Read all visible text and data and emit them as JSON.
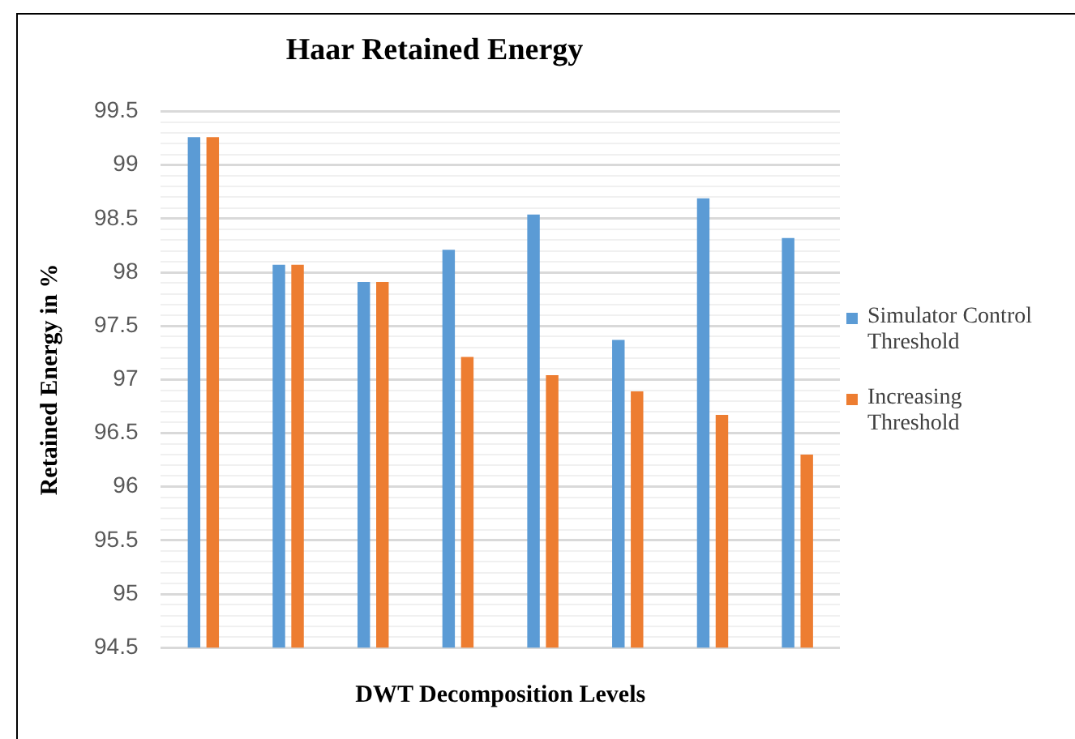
{
  "chart_data": {
    "type": "bar",
    "title": "Haar Retained Energy",
    "xlabel": "DWT Decomposition Levels",
    "ylabel": "Retained Energy in %",
    "categories": [
      null,
      null,
      null,
      null,
      null,
      null,
      null,
      null
    ],
    "series": [
      {
        "name": "Simulator Control Threshold",
        "color": "#5b9bd5",
        "values": [
          99.26,
          98.07,
          97.91,
          98.21,
          98.54,
          97.37,
          98.69,
          98.32
        ]
      },
      {
        "name": "Increasing Threshold",
        "color": "#ed7d31",
        "values": [
          99.26,
          98.07,
          97.91,
          97.21,
          97.04,
          96.89,
          96.67,
          96.3
        ]
      }
    ],
    "ylim": [
      94.5,
      99.5
    ],
    "yticks": [
      94.5,
      {
        "value": 94.6,
        "label": null
      },
      {
        "value": 94.7,
        "label": null
      },
      {
        "value": 94.8,
        "label": null
      },
      {
        "value": 94.9,
        "label": null
      },
      95,
      {
        "value": 95.1,
        "label": null
      },
      {
        "value": 95.2,
        "label": null
      },
      {
        "value": 95.3,
        "label": null
      },
      {
        "value": 95.4,
        "label": null
      },
      95.5,
      {
        "value": 95.6,
        "label": null
      },
      {
        "value": 95.7,
        "label": null
      },
      {
        "value": 95.8,
        "label": null
      },
      {
        "value": 95.9,
        "label": null
      },
      96,
      {
        "value": 96.1,
        "label": null
      },
      {
        "value": 96.2,
        "label": null
      },
      {
        "value": 96.3,
        "label": null
      },
      {
        "value": 96.4,
        "label": null
      },
      96.5,
      {
        "value": 96.6,
        "label": null
      },
      {
        "value": 96.7,
        "label": null
      },
      {
        "value": 96.8,
        "label": null
      },
      {
        "value": 96.9,
        "label": null
      },
      97,
      {
        "value": 97.1,
        "label": null
      },
      {
        "value": 97.2,
        "label": null
      },
      {
        "value": 97.3,
        "label": null
      },
      {
        "value": 97.4,
        "label": null
      },
      97.5,
      {
        "value": 97.6,
        "label": null
      },
      {
        "value": 97.7,
        "label": null
      },
      {
        "value": 97.8,
        "label": null
      },
      {
        "value": 97.9,
        "label": null
      },
      98,
      {
        "value": 98.1,
        "label": null
      },
      {
        "value": 98.2,
        "label": null
      },
      {
        "value": 98.3,
        "label": null
      },
      {
        "value": 98.4,
        "label": null
      },
      98.5,
      {
        "value": 98.6,
        "label": null
      },
      {
        "value": 98.7,
        "label": null
      },
      {
        "value": 98.8,
        "label": null
      },
      {
        "value": 98.9,
        "label": null
      },
      99,
      {
        "value": 99.1,
        "label": null
      },
      {
        "value": 99.2,
        "label": null
      },
      {
        "value": 99.3,
        "label": null
      },
      {
        "value": 99.4,
        "label": null
      },
      99.5
    ],
    "grid": "y",
    "legend": "right"
  }
}
